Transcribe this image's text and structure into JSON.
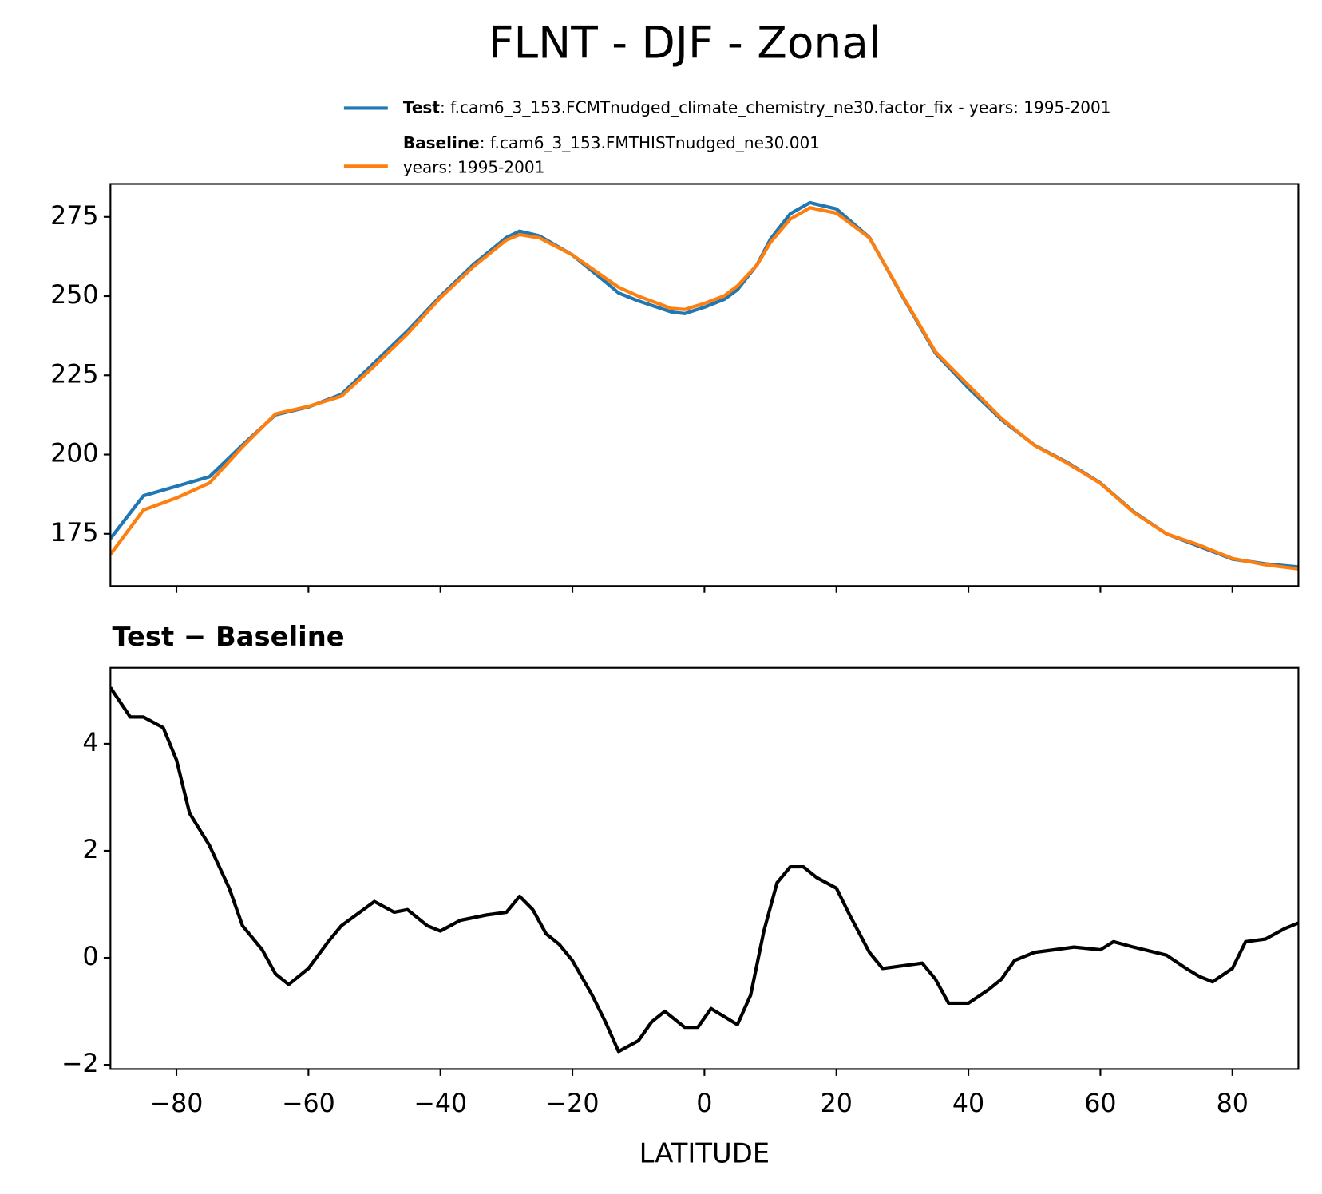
{
  "title": "FLNT - DJF - Zonal",
  "chart_data": [
    {
      "type": "line",
      "x": [
        -90,
        -85,
        -80,
        -75,
        -70,
        -65,
        -60,
        -55,
        -50,
        -45,
        -40,
        -35,
        -30,
        -28,
        -25,
        -20,
        -15,
        -13,
        -10,
        -5,
        -3,
        0,
        3,
        5,
        8,
        10,
        13,
        16,
        20,
        25,
        30,
        35,
        40,
        45,
        50,
        55,
        60,
        65,
        70,
        75,
        80,
        85,
        90
      ],
      "series": [
        {
          "name": "Test",
          "description": [
            ": f.cam6_3_153.FCMTnudged_climate_chemistry_ne30.factor_fix - years: 1995-2001"
          ],
          "color": "#1f77b4",
          "values": [
            173.5,
            187,
            190,
            193,
            203,
            212.5,
            215,
            219,
            229,
            239,
            250,
            260,
            268.5,
            270.5,
            269,
            263,
            254.5,
            251,
            248.5,
            245,
            244.5,
            246.5,
            249,
            252,
            260,
            268,
            276,
            279.5,
            277.5,
            268.5,
            250,
            232,
            221,
            211,
            203,
            197.5,
            191,
            182,
            175,
            171,
            167,
            165.5,
            164.5
          ]
        },
        {
          "name": "Baseline",
          "description": [
            ": f.cam6_3_153.FMTHISTnudged_ne30.001",
            "years: 1995-2001"
          ],
          "color": "#ff7f0e",
          "values": [
            168.5,
            182.5,
            186.3,
            191,
            202.4,
            212.8,
            215.2,
            218.4,
            228,
            238.1,
            249.5,
            259.3,
            267.7,
            269.4,
            268.4,
            263,
            255.7,
            252.8,
            250,
            246.1,
            245.8,
            247.7,
            250.1,
            253.2,
            259.9,
            267,
            274.3,
            277.9,
            276.2,
            268.4,
            250.2,
            232.4,
            221.9,
            211.4,
            202.9,
            197.3,
            190.9,
            181.8,
            175,
            171.4,
            167.2,
            165.2,
            163.9
          ]
        }
      ],
      "xlim": [
        -90,
        90
      ],
      "ylim": [
        158.5,
        285.4
      ],
      "yticks": [
        175,
        200,
        225,
        250,
        275
      ]
    },
    {
      "type": "line",
      "title": "Test − Baseline",
      "xlabel": "LATITUDE",
      "x": [
        -90,
        -87,
        -85,
        -82,
        -80,
        -78,
        -75,
        -72,
        -70,
        -67,
        -65,
        -63,
        -60,
        -57,
        -55,
        -50,
        -47,
        -45,
        -42,
        -40,
        -37,
        -33,
        -30,
        -28,
        -26,
        -24,
        -22,
        -20,
        -17,
        -15,
        -13,
        -10,
        -8,
        -6,
        -3,
        -1,
        1,
        3,
        5,
        7,
        9,
        11,
        13,
        15,
        17,
        20,
        22,
        25,
        27,
        30,
        33,
        35,
        37,
        40,
        43,
        45,
        47,
        50,
        53,
        56,
        60,
        62,
        65,
        70,
        73,
        75,
        77,
        80,
        82,
        85,
        88,
        90
      ],
      "series": [
        {
          "color": "#000000",
          "values": [
            5.05,
            4.5,
            4.5,
            4.3,
            3.7,
            2.7,
            2.1,
            1.3,
            0.6,
            0.15,
            -0.3,
            -0.5,
            -0.2,
            0.3,
            0.6,
            1.05,
            0.85,
            0.9,
            0.6,
            0.5,
            0.7,
            0.8,
            0.85,
            1.15,
            0.9,
            0.45,
            0.25,
            -0.05,
            -0.7,
            -1.2,
            -1.75,
            -1.55,
            -1.2,
            -1.0,
            -1.3,
            -1.3,
            -0.95,
            -1.1,
            -1.25,
            -0.7,
            0.5,
            1.4,
            1.7,
            1.7,
            1.5,
            1.3,
            0.8,
            0.1,
            -0.2,
            -0.15,
            -0.1,
            -0.4,
            -0.85,
            -0.85,
            -0.6,
            -0.4,
            -0.05,
            0.1,
            0.15,
            0.2,
            0.15,
            0.3,
            0.2,
            0.05,
            -0.2,
            -0.35,
            -0.45,
            -0.2,
            0.3,
            0.35,
            0.55,
            0.65
          ]
        }
      ],
      "xlim": [
        -90,
        90
      ],
      "ylim": [
        -2.08,
        5.42
      ],
      "xticks": [
        {
          "value": -80,
          "label": "−80"
        },
        {
          "value": -60,
          "label": "−60"
        },
        {
          "value": -40,
          "label": "−40"
        },
        {
          "value": -20,
          "label": "−20"
        },
        0,
        20,
        40,
        60,
        80
      ],
      "yticks": [
        {
          "value": -2,
          "label": "−2"
        },
        0,
        2,
        4
      ]
    }
  ]
}
